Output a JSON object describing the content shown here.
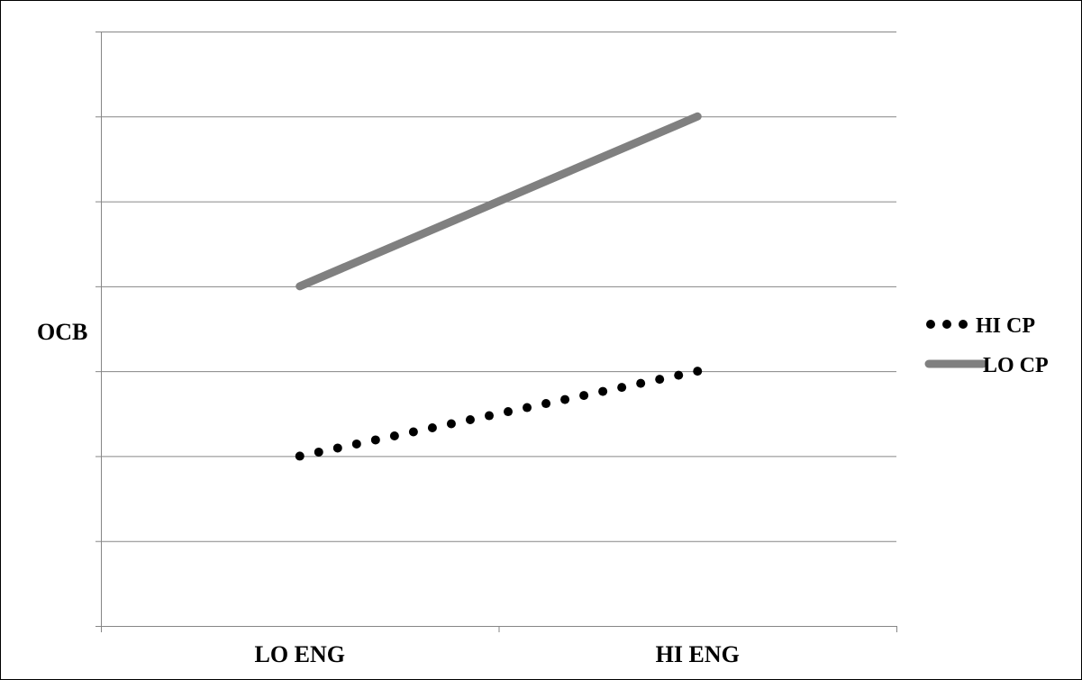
{
  "chart_data": {
    "type": "line",
    "title": "",
    "xlabel": "",
    "ylabel": "OCB",
    "categories": [
      "LO ENG",
      "HI ENG"
    ],
    "ylim": [
      0,
      7
    ],
    "y_tick_step": 1,
    "y_tick_labels_shown": false,
    "grid": true,
    "legend_position": "right",
    "series": [
      {
        "name": "HI CP",
        "values": [
          2,
          3
        ],
        "style": "dotted",
        "color": "#000000"
      },
      {
        "name": "LO CP",
        "values": [
          4,
          6
        ],
        "style": "solid",
        "color": "#808080"
      }
    ]
  },
  "colors": {
    "gridline": "#868686",
    "axis": "#868686",
    "frame": "#000000"
  }
}
